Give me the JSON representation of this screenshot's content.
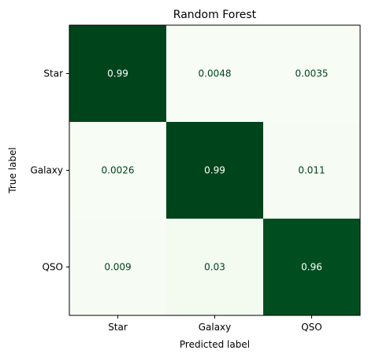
{
  "chart_data": {
    "type": "heatmap",
    "title": "Random Forest",
    "xlabel": "Predicted label",
    "ylabel": "True label",
    "x_categories": [
      "Star",
      "Galaxy",
      "QSO"
    ],
    "y_categories": [
      "Star",
      "Galaxy",
      "QSO"
    ],
    "values": [
      [
        0.99,
        0.0048,
        0.0035
      ],
      [
        0.0026,
        0.99,
        0.011
      ],
      [
        0.009,
        0.03,
        0.96
      ]
    ],
    "cell_labels": [
      [
        "0.99",
        "0.0048",
        "0.0035"
      ],
      [
        "0.0026",
        "0.99",
        "0.011"
      ],
      [
        "0.009",
        "0.03",
        "0.96"
      ]
    ],
    "colormap": "Greens",
    "color_low": "#f7fcf5",
    "color_high": "#00441b",
    "text_on_dark": "#ffffff",
    "text_on_light": "#00441b",
    "grid": false
  }
}
